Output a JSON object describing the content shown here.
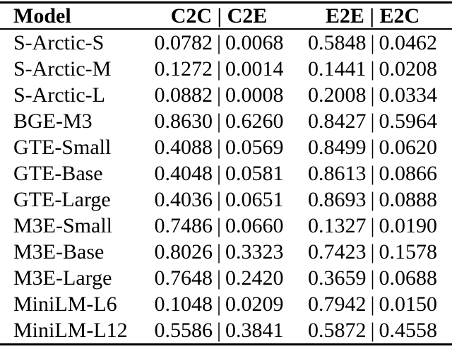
{
  "table": {
    "columns": [
      "Model",
      "C2C | C2E",
      "E2E | E2C"
    ],
    "value_separator": "|",
    "rows": [
      {
        "model": "S-Arctic-S",
        "c2c": "0.0782",
        "c2e": "0.0068",
        "e2e": "0.5848",
        "e2c": "0.0462"
      },
      {
        "model": "S-Arctic-M",
        "c2c": "0.1272",
        "c2e": "0.0014",
        "e2e": "0.1441",
        "e2c": "0.0208"
      },
      {
        "model": "S-Arctic-L",
        "c2c": "0.0882",
        "c2e": "0.0008",
        "e2e": "0.2008",
        "e2c": "0.0334"
      },
      {
        "model": "BGE-M3",
        "c2c": "0.8630",
        "c2e": "0.6260",
        "e2e": "0.8427",
        "e2c": "0.5964"
      },
      {
        "model": "GTE-Small",
        "c2c": "0.4088",
        "c2e": "0.0569",
        "e2e": "0.8499",
        "e2c": "0.0620"
      },
      {
        "model": "GTE-Base",
        "c2c": "0.4048",
        "c2e": "0.0581",
        "e2e": "0.8613",
        "e2c": "0.0866"
      },
      {
        "model": "GTE-Large",
        "c2c": "0.4036",
        "c2e": "0.0651",
        "e2e": "0.8693",
        "e2c": "0.0888"
      },
      {
        "model": "M3E-Small",
        "c2c": "0.7486",
        "c2e": "0.0660",
        "e2e": "0.1327",
        "e2c": "0.0190"
      },
      {
        "model": "M3E-Base",
        "c2c": "0.8026",
        "c2e": "0.3323",
        "e2e": "0.7423",
        "e2c": "0.1578"
      },
      {
        "model": "M3E-Large",
        "c2c": "0.7648",
        "c2e": "0.2420",
        "e2e": "0.3659",
        "e2c": "0.0688"
      },
      {
        "model": "MiniLM-L6",
        "c2c": "0.1048",
        "c2e": "0.0209",
        "e2e": "0.7942",
        "e2c": "0.0150"
      },
      {
        "model": "MiniLM-L12",
        "c2c": "0.5586",
        "c2e": "0.3841",
        "e2e": "0.5872",
        "e2c": "0.4558"
      }
    ]
  },
  "chart_data": {
    "type": "table",
    "title": "",
    "columns": [
      "Model",
      "C2C",
      "C2E",
      "E2E",
      "E2C"
    ],
    "rows": [
      [
        "S-Arctic-S",
        0.0782,
        0.0068,
        0.5848,
        0.0462
      ],
      [
        "S-Arctic-M",
        0.1272,
        0.0014,
        0.1441,
        0.0208
      ],
      [
        "S-Arctic-L",
        0.0882,
        0.0008,
        0.2008,
        0.0334
      ],
      [
        "BGE-M3",
        0.863,
        0.626,
        0.8427,
        0.5964
      ],
      [
        "GTE-Small",
        0.4088,
        0.0569,
        0.8499,
        0.062
      ],
      [
        "GTE-Base",
        0.4048,
        0.0581,
        0.8613,
        0.0866
      ],
      [
        "GTE-Large",
        0.4036,
        0.0651,
        0.8693,
        0.0888
      ],
      [
        "M3E-Small",
        0.7486,
        0.066,
        0.1327,
        0.019
      ],
      [
        "M3E-Base",
        0.8026,
        0.3323,
        0.7423,
        0.1578
      ],
      [
        "M3E-Large",
        0.7648,
        0.242,
        0.3659,
        0.0688
      ],
      [
        "MiniLM-L6",
        0.1048,
        0.0209,
        0.7942,
        0.015
      ],
      [
        "MiniLM-L12",
        0.5586,
        0.3841,
        0.5872,
        0.4558
      ]
    ]
  },
  "colors": {
    "text": "#000000",
    "background": "#ffffff",
    "rule": "#000000"
  }
}
